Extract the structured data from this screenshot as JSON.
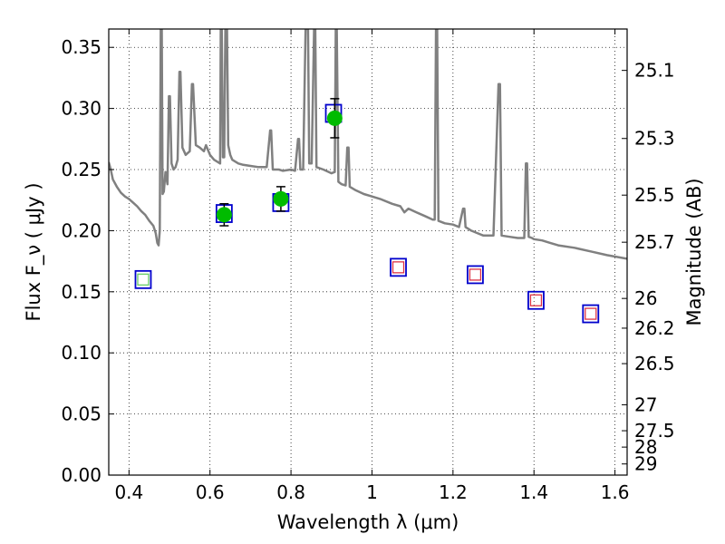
{
  "chart_data": {
    "type": "scatter",
    "title": "",
    "xlabel": "Wavelength  λ (μm)",
    "ylabel": "Flux  F_ν  ( μJy )",
    "ylabel_right": "Magnitude (AB)",
    "xlim": [
      0.35,
      1.63
    ],
    "ylim": [
      0.0,
      0.365
    ],
    "grid": true,
    "x_ticks": [
      {
        "value": 0.4,
        "label": "0.4"
      },
      {
        "value": 0.6,
        "label": "0.6"
      },
      {
        "value": 0.8,
        "label": "0.8"
      },
      {
        "value": 1.0,
        "label": "1"
      },
      {
        "value": 1.2,
        "label": "1.2"
      },
      {
        "value": 1.4,
        "label": "1.4"
      },
      {
        "value": 1.6,
        "label": "1.6"
      }
    ],
    "y_ticks": [
      {
        "value": 0.0,
        "label": "0.00"
      },
      {
        "value": 0.05,
        "label": "0.05"
      },
      {
        "value": 0.1,
        "label": "0.10"
      },
      {
        "value": 0.15,
        "label": "0.15"
      },
      {
        "value": 0.2,
        "label": "0.20"
      },
      {
        "value": 0.25,
        "label": "0.25"
      },
      {
        "value": 0.3,
        "label": "0.30"
      },
      {
        "value": 0.35,
        "label": "0.35"
      }
    ],
    "mag_ticks": [
      {
        "value": 25.1,
        "label": "25.1"
      },
      {
        "value": 25.3,
        "label": "25.3"
      },
      {
        "value": 25.5,
        "label": "25.5"
      },
      {
        "value": 25.7,
        "label": "25.7"
      },
      {
        "value": 26.0,
        "label": "26"
      },
      {
        "value": 26.2,
        "label": "26.2"
      },
      {
        "value": 26.5,
        "label": "26.5"
      },
      {
        "value": 27.0,
        "label": "27"
      },
      {
        "value": 27.5,
        "label": "27.5"
      },
      {
        "value": 28.0,
        "label": "28"
      },
      {
        "value": 29.0,
        "label": "29"
      }
    ],
    "colors": {
      "spectrum": "#808080",
      "open_square": "#0000cc",
      "inner_square_optical": "#66cc66",
      "inner_square_ir": "#dd3344",
      "observed_point": "#00bb00",
      "error_bar": "#000000"
    },
    "series": [
      {
        "kind": "line",
        "points": [
          [
            0.35,
            0.256
          ],
          [
            0.355,
            0.25
          ],
          [
            0.36,
            0.242
          ],
          [
            0.37,
            0.236
          ],
          [
            0.38,
            0.231
          ],
          [
            0.39,
            0.228
          ],
          [
            0.4,
            0.226
          ],
          [
            0.41,
            0.223
          ],
          [
            0.42,
            0.22
          ],
          [
            0.43,
            0.216
          ],
          [
            0.44,
            0.213
          ],
          [
            0.45,
            0.208
          ],
          [
            0.46,
            0.204
          ],
          [
            0.466,
            0.198
          ],
          [
            0.47,
            0.19
          ],
          [
            0.473,
            0.188
          ],
          [
            0.476,
            0.2
          ],
          [
            0.4785,
            0.365
          ],
          [
            0.481,
            0.365
          ],
          [
            0.483,
            0.23
          ],
          [
            0.486,
            0.232
          ],
          [
            0.49,
            0.248
          ],
          [
            0.495,
            0.238
          ],
          [
            0.4985,
            0.31
          ],
          [
            0.501,
            0.31
          ],
          [
            0.505,
            0.255
          ],
          [
            0.51,
            0.25
          ],
          [
            0.515,
            0.252
          ],
          [
            0.52,
            0.258
          ],
          [
            0.5245,
            0.33
          ],
          [
            0.527,
            0.33
          ],
          [
            0.532,
            0.268
          ],
          [
            0.54,
            0.262
          ],
          [
            0.55,
            0.265
          ],
          [
            0.5555,
            0.32
          ],
          [
            0.558,
            0.32
          ],
          [
            0.565,
            0.27
          ],
          [
            0.575,
            0.268
          ],
          [
            0.585,
            0.265
          ],
          [
            0.59,
            0.27
          ],
          [
            0.6,
            0.262
          ],
          [
            0.61,
            0.258
          ],
          [
            0.62,
            0.256
          ],
          [
            0.625,
            0.255
          ],
          [
            0.6265,
            0.365
          ],
          [
            0.629,
            0.365
          ],
          [
            0.632,
            0.26
          ],
          [
            0.635,
            0.26
          ],
          [
            0.638,
            0.365
          ],
          [
            0.642,
            0.365
          ],
          [
            0.645,
            0.27
          ],
          [
            0.65,
            0.262
          ],
          [
            0.655,
            0.258
          ],
          [
            0.67,
            0.255
          ],
          [
            0.68,
            0.254
          ],
          [
            0.7,
            0.253
          ],
          [
            0.72,
            0.252
          ],
          [
            0.74,
            0.252
          ],
          [
            0.7485,
            0.282
          ],
          [
            0.751,
            0.282
          ],
          [
            0.755,
            0.25
          ],
          [
            0.77,
            0.25
          ],
          [
            0.78,
            0.249
          ],
          [
            0.8,
            0.25
          ],
          [
            0.81,
            0.249
          ],
          [
            0.8175,
            0.275
          ],
          [
            0.82,
            0.275
          ],
          [
            0.823,
            0.25
          ],
          [
            0.83,
            0.25
          ],
          [
            0.836,
            0.365
          ],
          [
            0.842,
            0.365
          ],
          [
            0.845,
            0.255
          ],
          [
            0.851,
            0.255
          ],
          [
            0.857,
            0.365
          ],
          [
            0.86,
            0.365
          ],
          [
            0.863,
            0.252
          ],
          [
            0.88,
            0.25
          ],
          [
            0.9,
            0.247
          ],
          [
            0.908,
            0.248
          ],
          [
            0.9105,
            0.365
          ],
          [
            0.913,
            0.365
          ],
          [
            0.917,
            0.24
          ],
          [
            0.925,
            0.238
          ],
          [
            0.935,
            0.237
          ],
          [
            0.939,
            0.268
          ],
          [
            0.942,
            0.268
          ],
          [
            0.945,
            0.236
          ],
          [
            0.96,
            0.233
          ],
          [
            0.98,
            0.23
          ],
          [
            1.0,
            0.228
          ],
          [
            1.02,
            0.226
          ],
          [
            1.05,
            0.222
          ],
          [
            1.07,
            0.22
          ],
          [
            1.08,
            0.215
          ],
          [
            1.09,
            0.218
          ],
          [
            1.11,
            0.215
          ],
          [
            1.13,
            0.212
          ],
          [
            1.15,
            0.209
          ],
          [
            1.155,
            0.209
          ],
          [
            1.158,
            0.365
          ],
          [
            1.161,
            0.365
          ],
          [
            1.164,
            0.208
          ],
          [
            1.18,
            0.206
          ],
          [
            1.2,
            0.205
          ],
          [
            1.215,
            0.203
          ],
          [
            1.225,
            0.218
          ],
          [
            1.228,
            0.218
          ],
          [
            1.231,
            0.203
          ],
          [
            1.245,
            0.2
          ],
          [
            1.26,
            0.198
          ],
          [
            1.275,
            0.196
          ],
          [
            1.29,
            0.196
          ],
          [
            1.3,
            0.196
          ],
          [
            1.3125,
            0.32
          ],
          [
            1.316,
            0.32
          ],
          [
            1.32,
            0.196
          ],
          [
            1.34,
            0.195
          ],
          [
            1.36,
            0.194
          ],
          [
            1.376,
            0.194
          ],
          [
            1.38,
            0.255
          ],
          [
            1.383,
            0.255
          ],
          [
            1.387,
            0.195
          ],
          [
            1.395,
            0.194
          ],
          [
            1.4,
            0.193
          ],
          [
            1.42,
            0.192
          ],
          [
            1.44,
            0.19
          ],
          [
            1.46,
            0.188
          ],
          [
            1.5,
            0.186
          ],
          [
            1.54,
            0.183
          ],
          [
            1.58,
            0.18
          ],
          [
            1.63,
            0.177
          ]
        ]
      },
      {
        "kind": "open_square",
        "points": [
          {
            "x": 0.435,
            "y": 0.16,
            "inner": "optical"
          },
          {
            "x": 0.635,
            "y": 0.214,
            "inner": "none"
          },
          {
            "x": 0.775,
            "y": 0.223,
            "inner": "none"
          },
          {
            "x": 0.905,
            "y": 0.296,
            "inner": "none"
          },
          {
            "x": 1.065,
            "y": 0.17,
            "inner": "ir"
          },
          {
            "x": 1.255,
            "y": 0.164,
            "inner": "ir"
          },
          {
            "x": 1.405,
            "y": 0.143,
            "inner": "ir"
          },
          {
            "x": 1.54,
            "y": 0.132,
            "inner": "ir"
          }
        ]
      },
      {
        "kind": "point_with_error",
        "points": [
          {
            "x": 0.635,
            "y": 0.213,
            "yerr": 0.009
          },
          {
            "x": 0.775,
            "y": 0.226,
            "yerr": 0.01
          },
          {
            "x": 0.908,
            "y": 0.292,
            "yerr": 0.016
          }
        ]
      }
    ]
  }
}
